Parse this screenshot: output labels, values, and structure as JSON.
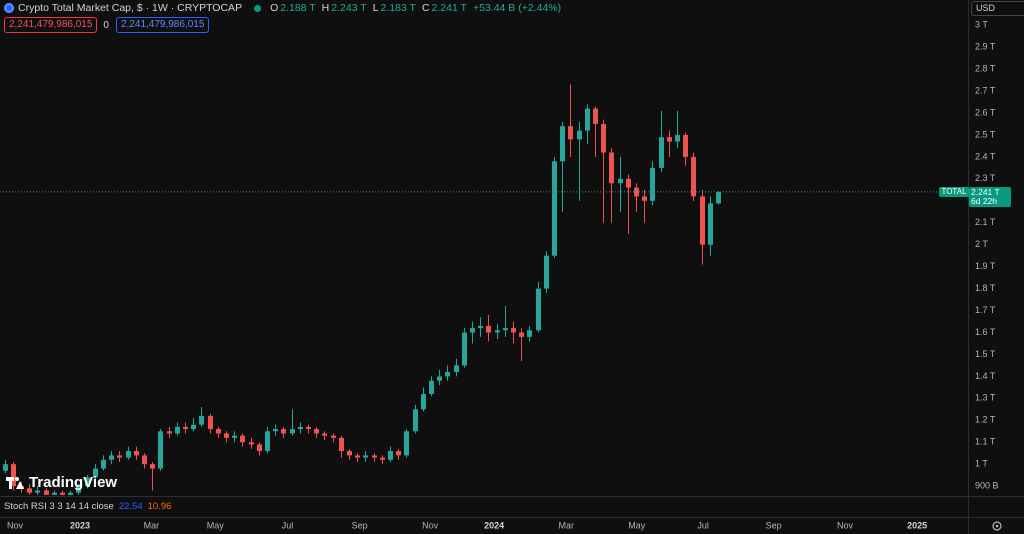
{
  "header": {
    "title": "Crypto Total Market Cap, $ · 1W · CRYPTOCAP",
    "ohlc": [
      {
        "key": "O",
        "value": "2.188 T"
      },
      {
        "key": "H",
        "value": "2.243 T"
      },
      {
        "key": "L",
        "value": "2.183 T"
      },
      {
        "key": "C",
        "value": "2.241 T"
      }
    ],
    "change": "+53.44 B (+2.44%)",
    "sell_price": "2,241,479,986,015",
    "spread": "0",
    "buy_price": "2,241,479,986,015"
  },
  "currency": "USD",
  "watermark": "TradingView",
  "indicator": {
    "name": "Stoch RSI 3 3 14 14 close",
    "k": "22.54",
    "d": "10.96"
  },
  "price_tag": {
    "symbol": "TOTAL",
    "price": "2.241 T",
    "countdown": "6d 22h"
  },
  "chart_data": {
    "type": "candlestick",
    "up_color": "#26a69a",
    "down_color": "#ef5350",
    "grid": false,
    "xlim": [
      -0.56,
      117.5
    ],
    "xticks": [
      {
        "value": 1.27,
        "label": "Nov"
      },
      {
        "value": 9.2,
        "label": "2023"
      },
      {
        "value": 17.9,
        "label": "Mar"
      },
      {
        "value": 25.7,
        "label": "May"
      },
      {
        "value": 34.5,
        "label": "Jul"
      },
      {
        "value": 43.3,
        "label": "Sep"
      },
      {
        "value": 51.9,
        "label": "Nov"
      },
      {
        "value": 59.7,
        "label": "2024"
      },
      {
        "value": 68.5,
        "label": "Mar"
      },
      {
        "value": 77.1,
        "label": "May"
      },
      {
        "value": 85.2,
        "label": "Jul"
      },
      {
        "value": 93.8,
        "label": "Sep"
      },
      {
        "value": 102.5,
        "label": "Nov"
      },
      {
        "value": 111.3,
        "label": "2025"
      }
    ],
    "ylim": [
      0.855,
      3.115
    ],
    "yticks": [
      {
        "value": 0.9,
        "label": "900 B"
      },
      {
        "value": 1,
        "label": "1 T"
      },
      {
        "value": 1.1,
        "label": "1.1 T"
      },
      {
        "value": 1.2,
        "label": "1.2 T"
      },
      {
        "value": 1.3,
        "label": "1.3 T"
      },
      {
        "value": 1.4,
        "label": "1.4 T"
      },
      {
        "value": 1.5,
        "label": "1.5 T"
      },
      {
        "value": 1.6,
        "label": "1.6 T"
      },
      {
        "value": 1.7,
        "label": "1.7 T"
      },
      {
        "value": 1.8,
        "label": "1.8 T"
      },
      {
        "value": 1.9,
        "label": "1.9 T"
      },
      {
        "value": 2,
        "label": "2 T"
      },
      {
        "value": 2.1,
        "label": "2.1 T"
      },
      {
        "value": 2.2,
        "label": "2.2 T"
      },
      {
        "value": 2.3,
        "label": "2.3 T"
      },
      {
        "value": 2.4,
        "label": "2.4 T"
      },
      {
        "value": 2.5,
        "label": "2.5 T"
      },
      {
        "value": 2.6,
        "label": "2.6 T"
      },
      {
        "value": 2.7,
        "label": "2.7 T"
      },
      {
        "value": 2.8,
        "label": "2.8 T"
      },
      {
        "value": 2.9,
        "label": "2.9 T"
      },
      {
        "value": 3,
        "label": "3 T"
      }
    ],
    "open": [
      0.97,
      1.0,
      0.9,
      0.89,
      0.87,
      0.88,
      0.86,
      0.87,
      0.86,
      0.87,
      0.9,
      0.94,
      0.98,
      1.02,
      1.04,
      1.03,
      1.06,
      1.04,
      1.0,
      0.98,
      1.15,
      1.14,
      1.17,
      1.16,
      1.18,
      1.22,
      1.16,
      1.14,
      1.12,
      1.13,
      1.1,
      1.09,
      1.06,
      1.15,
      1.16,
      1.14,
      1.16,
      1.17,
      1.16,
      1.14,
      1.13,
      1.12,
      1.06,
      1.04,
      1.03,
      1.04,
      1.03,
      1.02,
      1.06,
      1.04,
      1.15,
      1.25,
      1.32,
      1.38,
      1.4,
      1.42,
      1.45,
      1.6,
      1.62,
      1.63,
      1.6,
      1.61,
      1.62,
      1.6,
      1.58,
      1.61,
      1.8,
      1.95,
      2.38,
      2.54,
      2.48,
      2.52,
      2.62,
      2.55,
      2.42,
      2.28,
      2.3,
      2.26,
      2.22,
      2.2,
      2.35,
      2.49,
      2.47,
      2.5,
      2.4,
      2.22,
      2.0,
      2.188
    ],
    "high": [
      1.02,
      1.01,
      0.92,
      0.91,
      0.9,
      0.89,
      0.88,
      0.88,
      0.88,
      0.91,
      0.95,
      1.0,
      1.04,
      1.06,
      1.06,
      1.08,
      1.08,
      1.05,
      1.01,
      1.16,
      1.17,
      1.19,
      1.19,
      1.21,
      1.26,
      1.23,
      1.17,
      1.15,
      1.15,
      1.14,
      1.12,
      1.1,
      1.17,
      1.18,
      1.17,
      1.25,
      1.19,
      1.18,
      1.17,
      1.15,
      1.14,
      1.13,
      1.07,
      1.05,
      1.06,
      1.05,
      1.04,
      1.08,
      1.07,
      1.16,
      1.27,
      1.35,
      1.4,
      1.43,
      1.45,
      1.48,
      1.62,
      1.65,
      1.67,
      1.68,
      1.64,
      1.72,
      1.65,
      1.62,
      1.63,
      1.83,
      1.97,
      2.4,
      2.56,
      2.73,
      2.56,
      2.64,
      2.63,
      2.57,
      2.44,
      2.4,
      2.32,
      2.28,
      2.25,
      2.38,
      2.61,
      2.52,
      2.61,
      2.51,
      2.42,
      2.25,
      2.22,
      2.243
    ],
    "low": [
      0.96,
      0.88,
      0.87,
      0.86,
      0.86,
      0.86,
      0.86,
      0.86,
      0.86,
      0.86,
      0.89,
      0.93,
      0.97,
      1.0,
      1.01,
      1.02,
      1.02,
      0.98,
      0.88,
      0.97,
      1.12,
      1.13,
      1.14,
      1.15,
      1.17,
      1.14,
      1.12,
      1.1,
      1.1,
      1.08,
      1.07,
      1.04,
      1.05,
      1.13,
      1.12,
      1.13,
      1.14,
      1.14,
      1.12,
      1.11,
      1.1,
      1.03,
      1.02,
      1.01,
      1.01,
      1.01,
      1.0,
      1.01,
      1.02,
      1.03,
      1.14,
      1.24,
      1.31,
      1.36,
      1.38,
      1.4,
      1.44,
      1.55,
      1.58,
      1.56,
      1.57,
      1.58,
      1.55,
      1.47,
      1.56,
      1.6,
      1.78,
      1.94,
      2.15,
      2.4,
      2.2,
      2.46,
      2.4,
      2.1,
      2.1,
      2.15,
      2.05,
      2.15,
      2.1,
      2.18,
      2.33,
      2.4,
      2.44,
      2.36,
      2.2,
      1.91,
      1.95,
      2.183
    ],
    "close": [
      1.0,
      0.9,
      0.89,
      0.87,
      0.88,
      0.86,
      0.87,
      0.86,
      0.87,
      0.9,
      0.94,
      0.98,
      1.02,
      1.04,
      1.03,
      1.06,
      1.04,
      1.0,
      0.98,
      1.15,
      1.14,
      1.17,
      1.16,
      1.18,
      1.22,
      1.16,
      1.14,
      1.12,
      1.13,
      1.1,
      1.09,
      1.06,
      1.15,
      1.16,
      1.14,
      1.16,
      1.17,
      1.16,
      1.14,
      1.13,
      1.12,
      1.06,
      1.04,
      1.03,
      1.04,
      1.03,
      1.02,
      1.06,
      1.04,
      1.15,
      1.25,
      1.32,
      1.38,
      1.4,
      1.42,
      1.45,
      1.6,
      1.62,
      1.63,
      1.6,
      1.61,
      1.62,
      1.6,
      1.58,
      1.61,
      1.8,
      1.95,
      2.38,
      2.54,
      2.48,
      2.52,
      2.62,
      2.55,
      2.42,
      2.28,
      2.3,
      2.26,
      2.22,
      2.2,
      2.35,
      2.49,
      2.47,
      2.5,
      2.4,
      2.22,
      2.0,
      2.188,
      2.241
    ]
  }
}
